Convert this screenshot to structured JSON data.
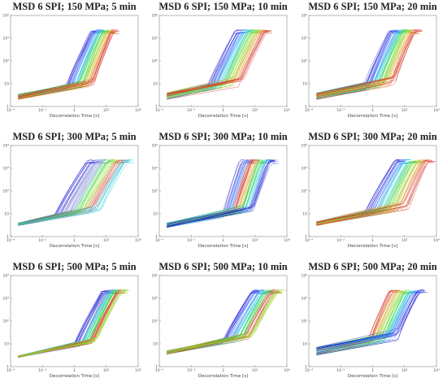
{
  "figure": {
    "xlabel": "Decorrelation Time [s]",
    "x_ticks": [
      "10⁻⁴",
      "10⁻²",
      "1",
      "10²",
      "10⁴"
    ],
    "y_ticks": [
      "1",
      "10",
      "10²",
      "10³",
      "10⁴"
    ]
  },
  "chart_data": [
    {
      "type": "line",
      "title": "MSD 6 SPI; 150 MPa; 5 min",
      "xlabel": "Decorrelation Time [s]",
      "ylabel": "",
      "x_scale": "log",
      "y_scale": "log",
      "xlim": [
        0.0001,
        10000
      ],
      "ylim": [
        1,
        10000
      ],
      "curves": {
        "count": 60,
        "y_start": [
          2.0,
          3.5
        ],
        "y_plateau": 2000,
        "rise_start_x": [
          0.3,
          20
        ],
        "rise_end_x": [
          10,
          300
        ],
        "colors": [
          "#1a1ad6",
          "#3f7fff",
          "#22c4d8",
          "#29d63a",
          "#9bd32b",
          "#e0a030",
          "#d73027"
        ]
      }
    },
    {
      "type": "line",
      "title": "MSD 6 SPI; 150 MPa; 10 min",
      "xlabel": "Decorrelation Time [s]",
      "ylabel": "",
      "x_scale": "log",
      "y_scale": "log",
      "xlim": [
        0.0001,
        10000
      ],
      "ylim": [
        1,
        10000
      ],
      "curves": {
        "count": 60,
        "y_start": [
          2.0,
          4.0
        ],
        "y_plateau": 2000,
        "rise_start_x": [
          0.1,
          20
        ],
        "rise_end_x": [
          5,
          500
        ],
        "colors": [
          "#1a1ad6",
          "#3f7fff",
          "#22c4d8",
          "#29d63a",
          "#9bd32b",
          "#e0a030",
          "#d73027"
        ]
      }
    },
    {
      "type": "line",
      "title": "MSD 6 SPI; 150 MPa; 20 min",
      "xlabel": "Decorrelation Time [s]",
      "ylabel": "",
      "x_scale": "log",
      "y_scale": "log",
      "xlim": [
        0.0001,
        10000
      ],
      "ylim": [
        1,
        10000
      ],
      "curves": {
        "count": 60,
        "y_start": [
          2.0,
          4.0
        ],
        "y_plateau": 2000,
        "rise_start_x": [
          0.3,
          30
        ],
        "rise_end_x": [
          10,
          500
        ],
        "colors": [
          "#1a1ad6",
          "#3f7fff",
          "#22c4d8",
          "#29d63a",
          "#9bd32b",
          "#e0a030",
          "#d73027"
        ]
      }
    },
    {
      "type": "line",
      "title": "MSD 6 SPI; 300 MPa; 5 min",
      "xlabel": "Decorrelation Time [s]",
      "ylabel": "",
      "x_scale": "log",
      "y_scale": "log",
      "xlim": [
        0.0001,
        10000
      ],
      "ylim": [
        1,
        10000
      ],
      "curves": {
        "count": 60,
        "y_start": [
          3.0,
          4.0
        ],
        "y_plateau": 2000,
        "rise_start_x": [
          0.05,
          50
        ],
        "rise_end_x": [
          5,
          2000
        ],
        "colors": [
          "#1a1ad6",
          "#6a6ad0",
          "#7b8ad8",
          "#29d63a",
          "#9bd32b",
          "#d73027",
          "#22c4d8"
        ]
      }
    },
    {
      "type": "line",
      "title": "MSD 6 SPI; 300 MPa; 10 min",
      "xlabel": "Decorrelation Time [s]",
      "ylabel": "",
      "x_scale": "log",
      "y_scale": "log",
      "xlim": [
        0.0001,
        10000
      ],
      "ylim": [
        1,
        10000
      ],
      "curves": {
        "count": 60,
        "y_start": [
          2.5,
          4.0
        ],
        "y_plateau": 2000,
        "rise_start_x": [
          1,
          100
        ],
        "rise_end_x": [
          10,
          1000
        ],
        "colors": [
          "#5a5ad6",
          "#3f7fff",
          "#d73027",
          "#e0a030",
          "#29d63a",
          "#22c4d8",
          "#1a1ad6"
        ]
      }
    },
    {
      "type": "line",
      "title": "MSD 6 SPI; 300 MPa; 20 min",
      "xlabel": "Decorrelation Time [s]",
      "ylabel": "",
      "x_scale": "log",
      "y_scale": "log",
      "xlim": [
        0.0001,
        10000
      ],
      "ylim": [
        1,
        10000
      ],
      "curves": {
        "count": 60,
        "y_start": [
          3.0,
          4.5
        ],
        "y_plateau": 2000,
        "rise_start_x": [
          0.3,
          200
        ],
        "rise_end_x": [
          20,
          3000
        ],
        "colors": [
          "#1a1ad6",
          "#3f7fff",
          "#22c4d8",
          "#29d63a",
          "#9bd32b",
          "#e0a030",
          "#d73027"
        ]
      }
    },
    {
      "type": "line",
      "title": "MSD 6 SPI; 500 MPa; 5 min",
      "xlabel": "Decorrelation Time [s]",
      "ylabel": "",
      "x_scale": "log",
      "y_scale": "log",
      "xlim": [
        0.0001,
        10000
      ],
      "ylim": [
        1,
        10000
      ],
      "curves": {
        "count": 60,
        "y_start": [
          2.5,
          3.0
        ],
        "y_plateau": 2000,
        "rise_start_x": [
          1,
          30
        ],
        "rise_end_x": [
          50,
          1000
        ],
        "colors": [
          "#1a1ad6",
          "#6a6ad0",
          "#22c4d8",
          "#29d63a",
          "#d73027",
          "#9bd32b"
        ]
      }
    },
    {
      "type": "line",
      "title": "MSD 6 SPI; 500 MPa; 10 min",
      "xlabel": "Decorrelation Time [s]",
      "ylabel": "",
      "x_scale": "log",
      "y_scale": "log",
      "xlim": [
        0.0001,
        10000
      ],
      "ylim": [
        1,
        10000
      ],
      "curves": {
        "count": 60,
        "y_start": [
          3.5,
          5.0
        ],
        "y_plateau": 2000,
        "rise_start_x": [
          1,
          100
        ],
        "rise_end_x": [
          50,
          3000
        ],
        "colors": [
          "#1a1ad6",
          "#3f7fff",
          "#22c4d8",
          "#29d63a",
          "#d73027",
          "#9bd32b"
        ]
      }
    },
    {
      "type": "line",
      "title": "MSD 6 SPI; 500 MPa; 20 min",
      "xlabel": "Decorrelation Time [s]",
      "ylabel": "",
      "x_scale": "log",
      "y_scale": "log",
      "xlim": [
        0.0001,
        10000
      ],
      "ylim": [
        1,
        10000
      ],
      "curves": {
        "count": 60,
        "y_start": [
          3.0,
          7.0
        ],
        "y_plateau": 2000,
        "rise_start_x": [
          0.5,
          50
        ],
        "rise_end_x": [
          10,
          1000
        ],
        "colors": [
          "#d73027",
          "#e0a030",
          "#9bd32b",
          "#29d63a",
          "#22c4d8",
          "#3f7fff",
          "#1a1ad6"
        ]
      }
    }
  ]
}
